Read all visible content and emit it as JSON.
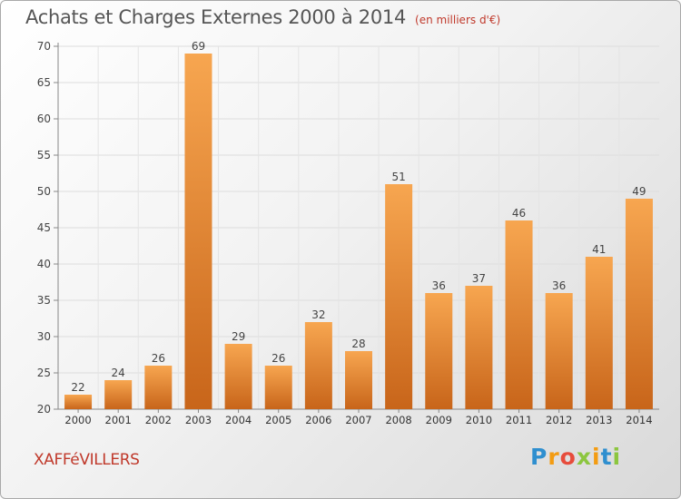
{
  "title": "Achats et Charges Externes 2000 à 2014",
  "unit_note": "(en milliers d'€)",
  "commune": "XAFFéVILLERS",
  "brand": "Proxiti",
  "colors": {
    "bar_light": "#f7a650",
    "bar_dark": "#c8651a",
    "title": "#555555",
    "accent": "#c0392b"
  },
  "chart_data": {
    "type": "bar",
    "title": "Achats et Charges Externes 2000 à 2014",
    "xlabel": "",
    "ylabel": "",
    "categories": [
      "2000",
      "2001",
      "2002",
      "2003",
      "2004",
      "2005",
      "2006",
      "2007",
      "2008",
      "2009",
      "2010",
      "2011",
      "2012",
      "2013",
      "2014"
    ],
    "values": [
      22,
      24,
      26,
      69,
      29,
      26,
      32,
      28,
      51,
      36,
      37,
      46,
      36,
      41,
      49
    ],
    "ylim": [
      20,
      70
    ],
    "yticks": [
      20,
      25,
      30,
      35,
      40,
      45,
      50,
      55,
      60,
      65,
      70
    ],
    "grid": true,
    "data_labels": true
  }
}
